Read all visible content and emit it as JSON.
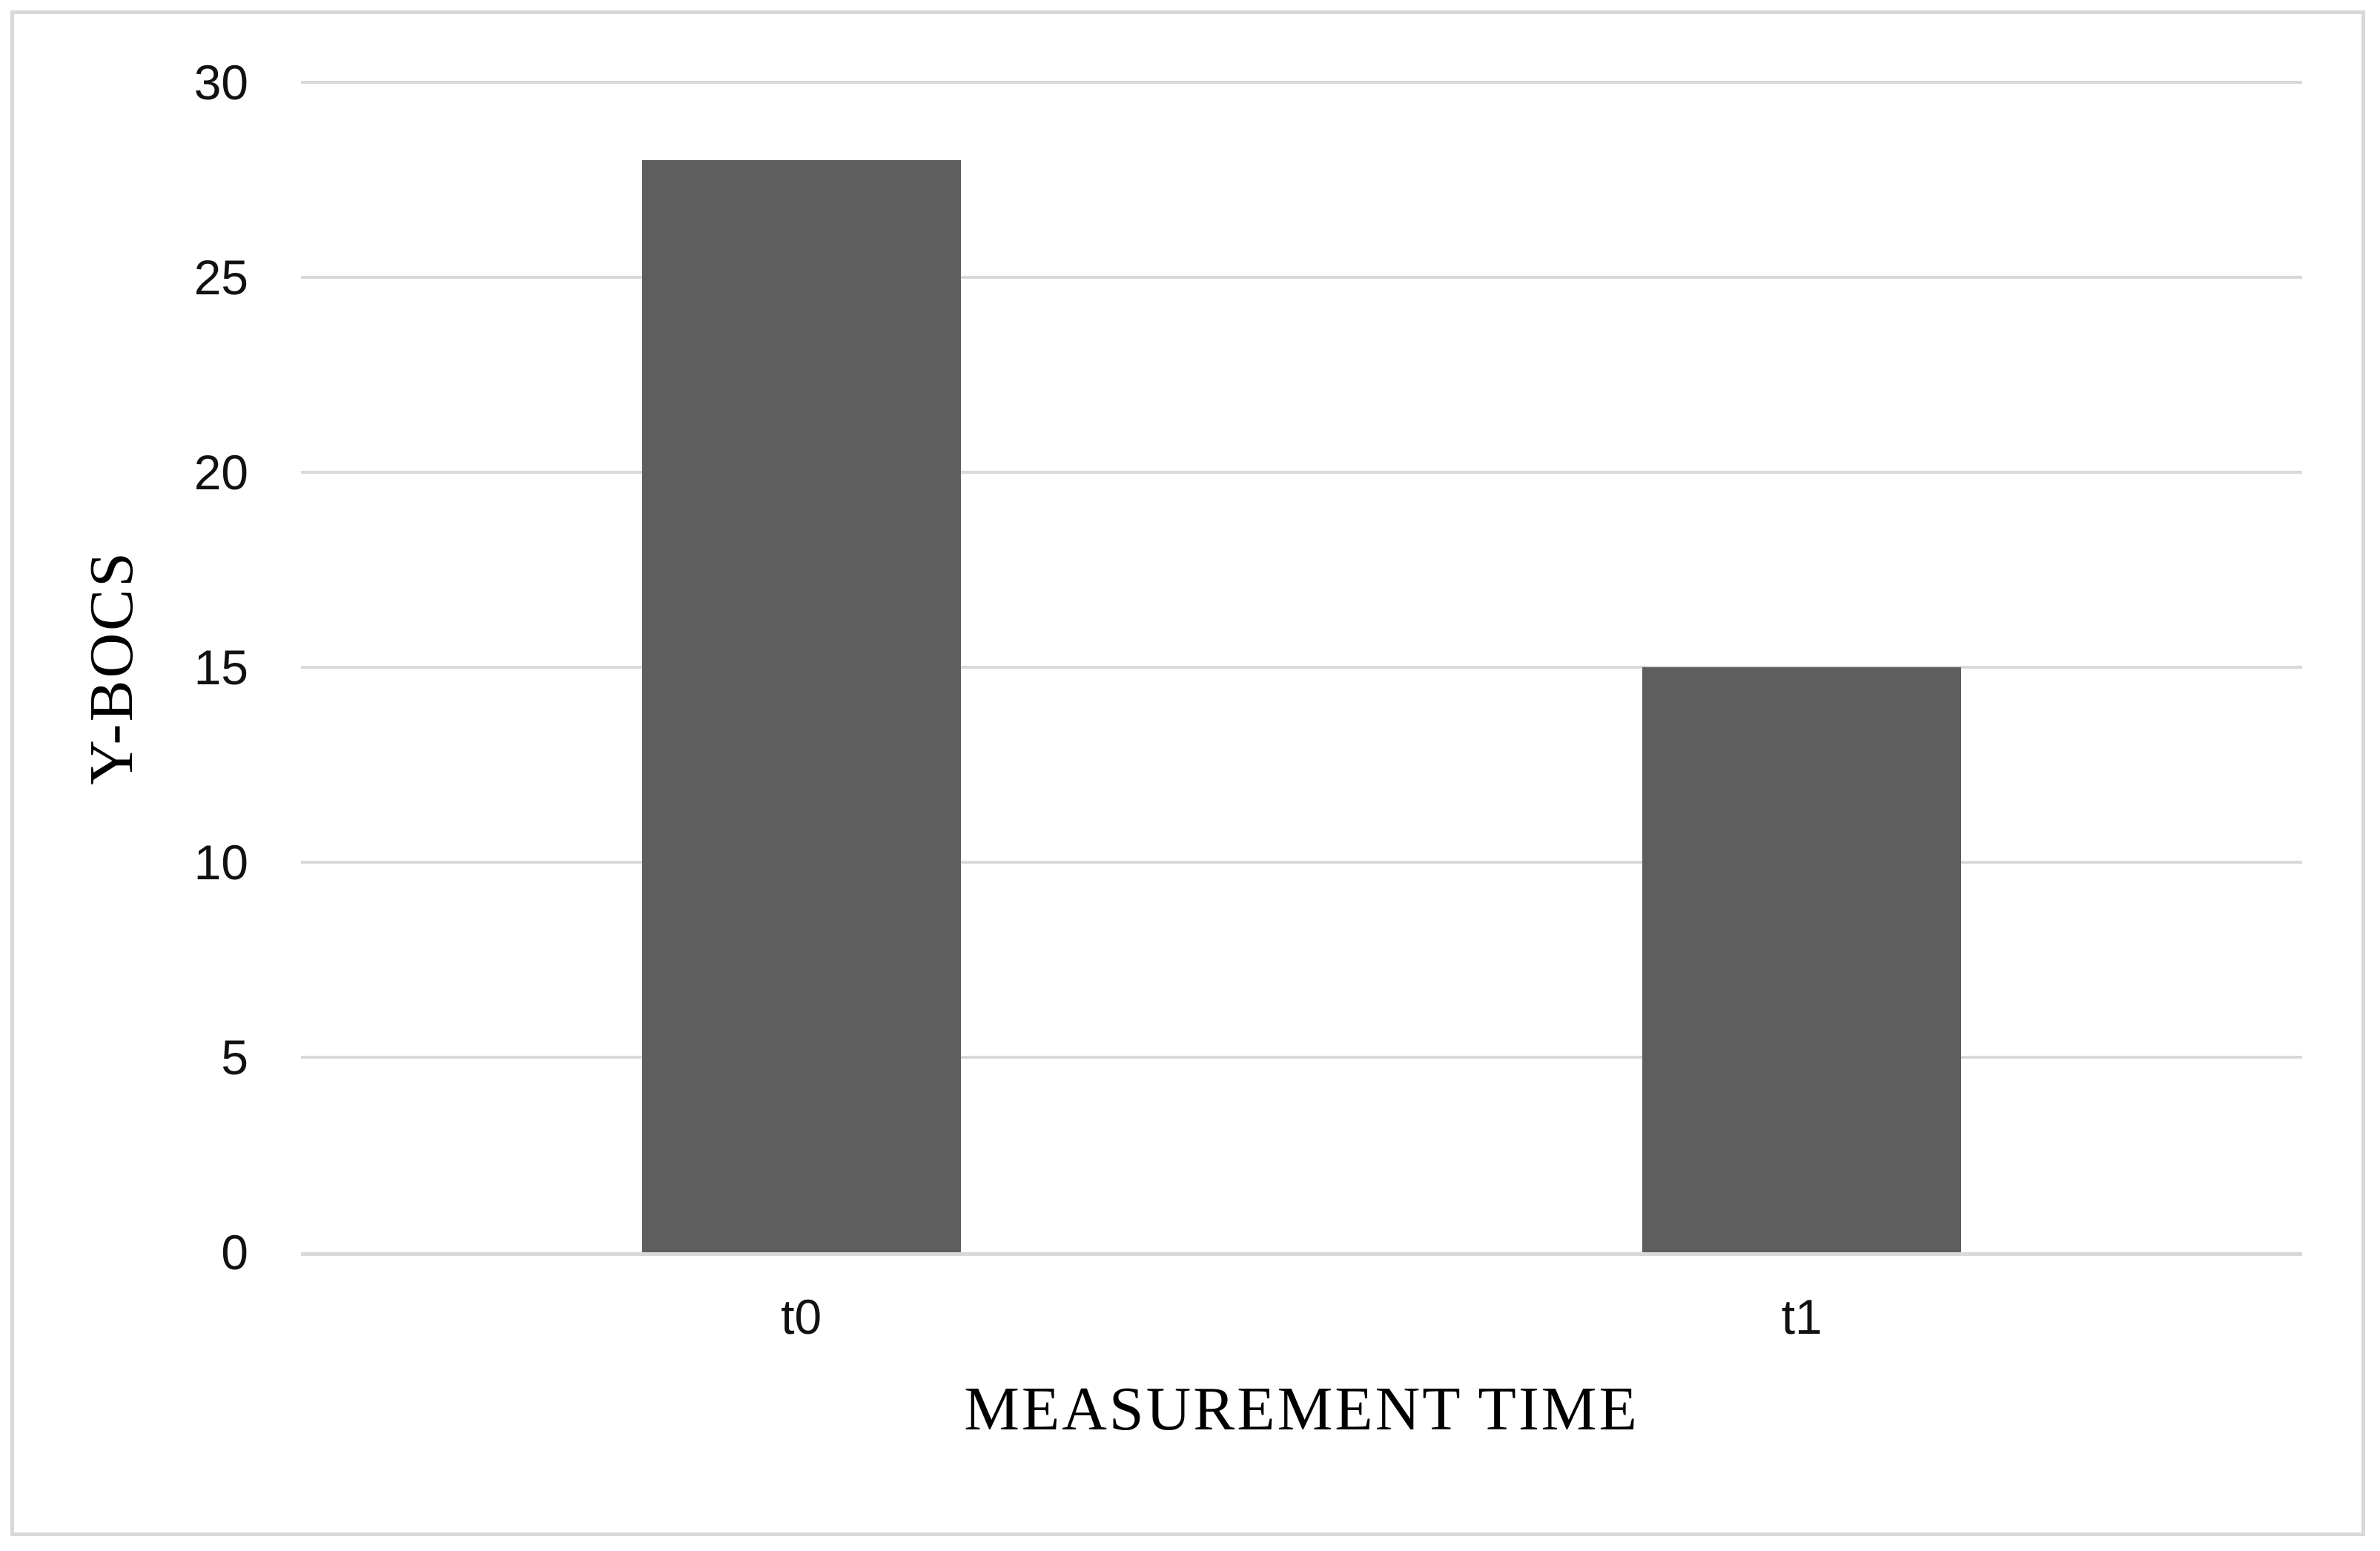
{
  "chart_data": {
    "type": "bar",
    "categories": [
      "t0",
      "t1"
    ],
    "values": [
      28,
      15
    ],
    "title": "",
    "xlabel": "MEASUREMENT TIME",
    "ylabel": "Y-BOCS",
    "ylim": [
      0,
      30
    ],
    "yticks": [
      0,
      5,
      10,
      15,
      20,
      25,
      30
    ],
    "grid": "horizontal-only",
    "legend": "none",
    "bar_color": "#5e5e5e",
    "gridline_color": "#d9d9d9",
    "axisline_color": "#d9d9d9",
    "frame_color": "#d8d8d8",
    "background_color": "#ffffff",
    "tick_text_color": "#111111",
    "axis_title_color": "#000000"
  }
}
